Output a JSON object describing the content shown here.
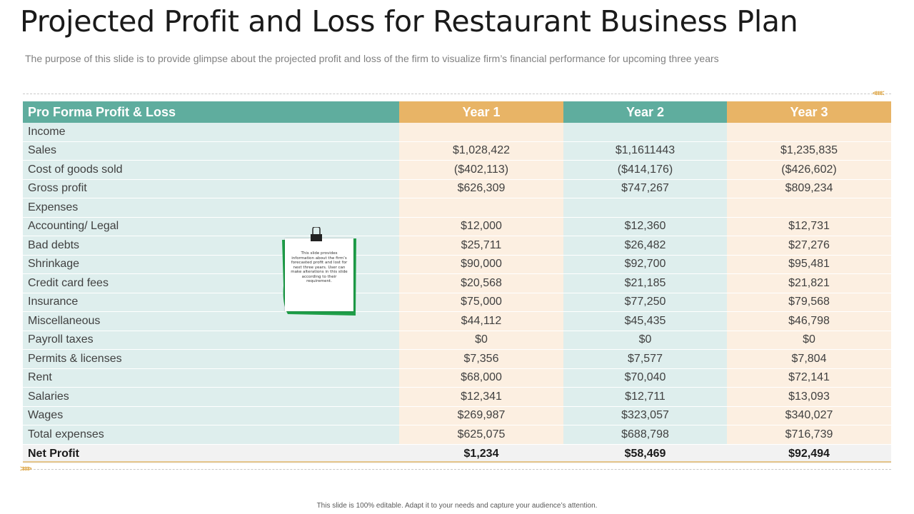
{
  "slide": {
    "title": "Projected Profit and Loss for Restaurant Business Plan",
    "subtitle": "The purpose of this slide is to provide  glimpse about the projected profit and loss of the firm to visualize firm’s financial performance for upcoming three years",
    "footer": "This slide is 100% editable.  Adapt it to your needs and capture your audience’s attention.",
    "chevrons_right": "<<<<",
    "chevrons_left": ">>>>"
  },
  "table": {
    "headers": [
      "Pro Forma Profit & Loss",
      "Year 1",
      "Year 2",
      "Year 3"
    ],
    "rows": [
      {
        "label": "Income",
        "y1": "",
        "y2": "",
        "y3": ""
      },
      {
        "label": "Sales",
        "y1": "$1,028,422",
        "y2": "$1,1611443",
        "y3": "$1,235,835"
      },
      {
        "label": "Cost of goods sold",
        "y1": "($402,113)",
        "y2": "($414,176)",
        "y3": "($426,602)"
      },
      {
        "label": "Gross profit",
        "y1": "$626,309",
        "y2": "$747,267",
        "y3": "$809,234"
      },
      {
        "label": "Expenses",
        "y1": "",
        "y2": "",
        "y3": ""
      },
      {
        "label": "Accounting/ Legal",
        "y1": "$12,000",
        "y2": "$12,360",
        "y3": "$12,731"
      },
      {
        "label": "Bad debts",
        "y1": "$25,711",
        "y2": "$26,482",
        "y3": "$27,276"
      },
      {
        "label": "Shrinkage",
        "y1": "$90,000",
        "y2": "$92,700",
        "y3": "$95,481"
      },
      {
        "label": "Credit card fees",
        "y1": "$20,568",
        "y2": "$21,185",
        "y3": "$21,821"
      },
      {
        "label": "Insurance",
        "y1": "$75,000",
        "y2": "$77,250",
        "y3": "$79,568"
      },
      {
        "label": "Miscellaneous",
        "y1": "$44,112",
        "y2": "$45,435",
        "y3": "$46,798"
      },
      {
        "label": "Payroll taxes",
        "y1": "$0",
        "y2": "$0",
        "y3": "$0"
      },
      {
        "label": "Permits & licenses",
        "y1": "$7,356",
        "y2": "$7,577",
        "y3": "$7,804"
      },
      {
        "label": "Rent",
        "y1": "$68,000",
        "y2": "$70,040",
        "y3": "$72,141"
      },
      {
        "label": "Salaries",
        "y1": "$12,341",
        "y2": "$12,711",
        "y3": "$13,093"
      },
      {
        "label": "Wages",
        "y1": "$269,987",
        "y2": "$323,057",
        "y3": "$340,027"
      },
      {
        "label": "Total expenses",
        "y1": "$625,075",
        "y2": "$688,798",
        "y3": "$716,739"
      }
    ],
    "net_profit": {
      "label": "Net Profit",
      "y1": "$1,234",
      "y2": "$58,469",
      "y3": "$92,494"
    }
  },
  "sticky_note": {
    "text": "This slide provides information about the firm’s forecasted profit and lost for next three years. User can make alterations in this slide according to their requirement.",
    "icon": "binder-clip-icon",
    "colors": {
      "frame": "#1e9e48",
      "clip": "#222222"
    }
  },
  "colors": {
    "teal_header": "#5fad9e",
    "gold_header": "#e8b466",
    "teal_cell": "#deeeed",
    "cream_cell": "#fcefe1",
    "net_row": "#f2f2f2"
  }
}
